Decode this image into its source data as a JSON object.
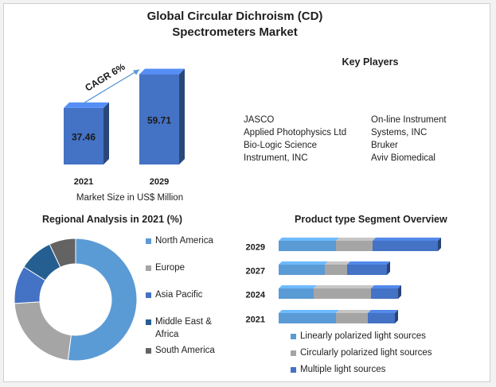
{
  "title_line1": "Global Circular Dichroism (CD)",
  "title_line2": "Spectrometers Market",
  "key_players": {
    "heading": "Key Players",
    "left": [
      "JASCO",
      "Applied Photophysics Ltd",
      "Bio-Logic Science",
      "Instrument, INC"
    ],
    "right": [
      "On-line Instrument",
      "Systems, INC",
      "Bruker",
      "Aviv Biomedical"
    ]
  },
  "colors": {
    "bar_blue": "#4472C4",
    "north_america": "#5B9BD5",
    "europe": "#A5A5A5",
    "asia_pacific": "#4472C4",
    "middle_east_africa": "#255E91",
    "south_america": "#636363"
  },
  "chart_data": [
    {
      "type": "bar",
      "categories": [
        "2021",
        "2029"
      ],
      "values": [
        37.46,
        59.71
      ],
      "data_labels": [
        "37.46",
        "59.71"
      ],
      "xlabel": "Market Size in US$ Million",
      "annotation": "CAGR 6%"
    },
    {
      "type": "pie",
      "title": "Regional Analysis in 2021 (%)",
      "labels": [
        "North America",
        "Europe",
        "Asia Pacific",
        "Middle East & Africa",
        "South America"
      ],
      "values": [
        52,
        22,
        10,
        9,
        7
      ]
    },
    {
      "type": "bar",
      "orientation": "horizontal",
      "stacked": true,
      "title": "Product type Segment Overview",
      "categories": [
        "2029",
        "2027",
        "2024",
        "2021"
      ],
      "series": [
        {
          "name": "Linearly polarized light sources",
          "values": [
            36,
            29,
            22,
            36
          ]
        },
        {
          "name": "Circularly polarized light sources",
          "values": [
            23,
            14,
            36,
            20
          ]
        },
        {
          "name": "Multiple light sources",
          "values": [
            41,
            25,
            17,
            17
          ]
        }
      ],
      "xlim": [
        0,
        100
      ]
    }
  ]
}
